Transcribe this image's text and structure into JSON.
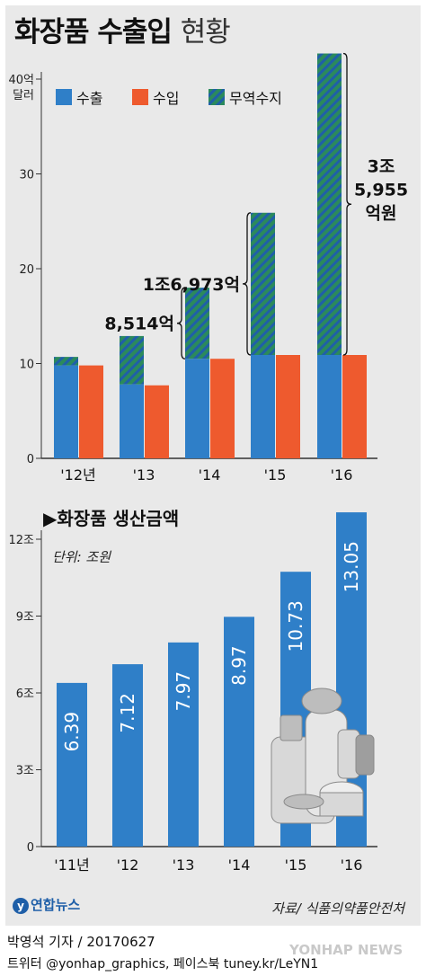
{
  "title": {
    "bold": "화장품 수출입",
    "light": "현황"
  },
  "chart_data": [
    {
      "type": "bar",
      "ylabel": "40억 달러",
      "categories": [
        "'12년",
        "'13",
        "'14",
        "'15",
        "'16"
      ],
      "ylim": [
        0,
        42
      ],
      "yticks": [
        "0",
        "10",
        "20",
        "30",
        "40억"
      ],
      "series": [
        {
          "name": "수출",
          "color": "#2f7fc8",
          "values": [
            9.8,
            7.8,
            10.5,
            10.9,
            10.9
          ]
        },
        {
          "name": "수입",
          "color": "#ee5a2e",
          "values": [
            9.8,
            7.7,
            10.5,
            10.9,
            10.9
          ]
        },
        {
          "name": "무역수지",
          "color": "#2b8a5c",
          "values": [
            0.9,
            5.1,
            7.5,
            15.0,
            31.8
          ]
        }
      ],
      "annotations": [
        "8,514억",
        "1조6,973억",
        "3조",
        "5,955",
        "억원"
      ]
    },
    {
      "type": "bar",
      "title": "화장품 생산금액",
      "unit_label": "단위: 조원",
      "categories": [
        "'11년",
        "'12",
        "'13",
        "'14",
        "'15",
        "'16"
      ],
      "ylim": [
        0,
        13.5
      ],
      "yticks": [
        "0",
        "3조",
        "6조",
        "9조",
        "12조"
      ],
      "values": [
        6.39,
        7.12,
        7.97,
        8.97,
        10.73,
        13.05
      ],
      "value_labels": [
        "6.39",
        "7.12",
        "7.97",
        "8.97",
        "10.73",
        "13.05"
      ],
      "color": "#2f7fc8"
    }
  ],
  "footer": {
    "logo": "연합뉴스",
    "source": "자료/ 식품의약품안전처",
    "reporter": "박영석 기자 / 20170627",
    "social": "트위터 @yonhap_graphics, 페이스북 tuney.kr/LeYN1",
    "watermark": "YONHAP NEWS"
  }
}
